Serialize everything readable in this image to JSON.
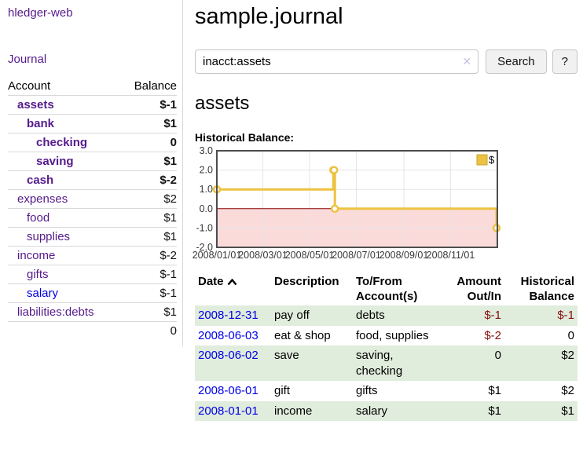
{
  "sidebar": {
    "brand": "hledger-web",
    "journal_link": "Journal",
    "accounts": {
      "header_account": "Account",
      "header_balance": "Balance",
      "rows": [
        {
          "name": "assets",
          "depth": 1,
          "bold": true,
          "balance": "$-1",
          "neg": "strong"
        },
        {
          "name": "bank",
          "depth": 2,
          "bold": true,
          "balance": "$1"
        },
        {
          "name": "checking",
          "depth": 3,
          "bold": true,
          "balance": "0"
        },
        {
          "name": "saving",
          "depth": 3,
          "bold": true,
          "balance": "$1"
        },
        {
          "name": "cash",
          "depth": 2,
          "bold": true,
          "balance": "$-2",
          "neg": "strong"
        },
        {
          "name": "expenses",
          "depth": 1,
          "bold": false,
          "balance": "$2"
        },
        {
          "name": "food",
          "depth": 2,
          "bold": false,
          "balance": "$1"
        },
        {
          "name": "supplies",
          "depth": 2,
          "bold": false,
          "balance": "$1"
        },
        {
          "name": "income",
          "depth": 1,
          "bold": false,
          "balance": "$-2",
          "neg": "faded"
        },
        {
          "name": "gifts",
          "depth": 2,
          "bold": false,
          "balance": "$-1",
          "neg": "faded"
        },
        {
          "name": "salary",
          "depth": 2,
          "bold": false,
          "balance": "$-1",
          "neg": "faded",
          "unvisited": true
        },
        {
          "name": "liabilities:debts",
          "depth": 1,
          "bold": false,
          "balance": "$1"
        }
      ],
      "total": "0"
    }
  },
  "main": {
    "title": "sample.journal",
    "search": {
      "value": "inacct:assets",
      "clear_icon": "✕",
      "button_label": "Search",
      "help_label": "?"
    },
    "account_heading": "assets"
  },
  "chart_data": {
    "type": "line",
    "step": true,
    "title": "Historical Balance:",
    "x_range": [
      "2008-01-01",
      "2009-01-01"
    ],
    "x_ticks": [
      "2008/01/01",
      "2008/03/01",
      "2008/05/01",
      "2008/07/01",
      "2008/09/01",
      "2008/11/01"
    ],
    "y_ticks": [
      3.0,
      2.0,
      1.0,
      0.0,
      -1.0,
      -2.0
    ],
    "ylim": [
      -2,
      3
    ],
    "series": [
      {
        "name": "$",
        "color": "#edc240",
        "points": [
          [
            "2008-01-01",
            1
          ],
          [
            "2008-06-01",
            2
          ],
          [
            "2008-06-02",
            2
          ],
          [
            "2008-06-03",
            0
          ],
          [
            "2008-12-31",
            -1
          ]
        ]
      }
    ],
    "legend": {
      "label": "$",
      "position": "top-right"
    },
    "negative_region_color": "#fbdada",
    "zero_line_color": "#8b0000",
    "border_color": "#4d4d4d",
    "grid_color": "#e5e5e5"
  },
  "register": {
    "columns": [
      {
        "label": "Date",
        "sortable": true,
        "align": "left"
      },
      {
        "label": "Description",
        "align": "left"
      },
      {
        "label": "To/From Account(s)",
        "align": "left"
      },
      {
        "label": "Amount Out/In",
        "align": "right"
      },
      {
        "label": "Historical Balance",
        "align": "right"
      }
    ],
    "rows": [
      {
        "date": "2008-12-31",
        "description": "pay off",
        "accounts": "debts",
        "amount": "$-1",
        "amount_neg": true,
        "balance": "$-1",
        "balance_neg": true,
        "striped": true
      },
      {
        "date": "2008-06-03",
        "description": "eat & shop",
        "accounts": "food, supplies",
        "amount": "$-2",
        "amount_neg": true,
        "balance": "0",
        "balance_neg": false,
        "striped": false
      },
      {
        "date": "2008-06-02",
        "description": "save",
        "accounts": "saving, checking",
        "amount": "0",
        "amount_neg": false,
        "balance": "$2",
        "balance_neg": false,
        "striped": true
      },
      {
        "date": "2008-06-01",
        "description": "gift",
        "accounts": "gifts",
        "amount": "$1",
        "amount_neg": false,
        "balance": "$2",
        "balance_neg": false,
        "striped": false
      },
      {
        "date": "2008-01-01",
        "description": "income",
        "accounts": "salary",
        "amount": "$1",
        "amount_neg": false,
        "balance": "$1",
        "balance_neg": false,
        "striped": true
      }
    ]
  }
}
